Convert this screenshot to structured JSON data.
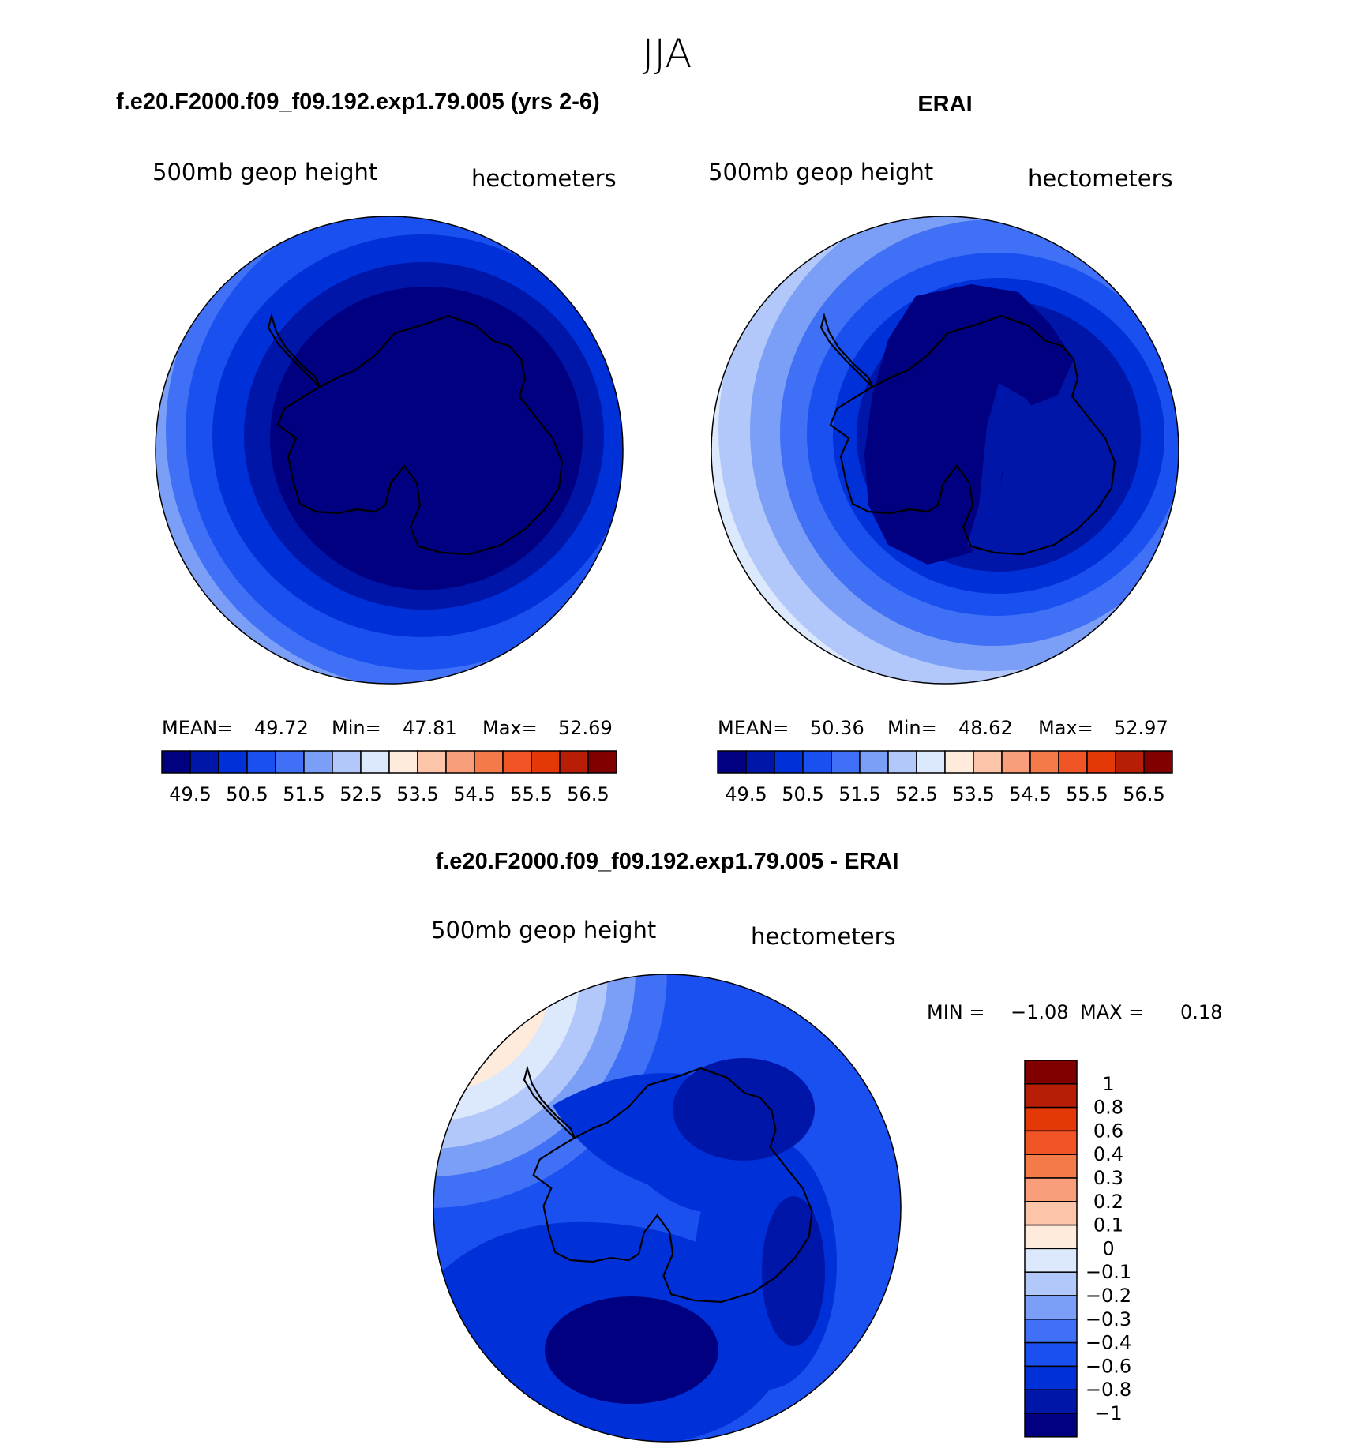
{
  "figure": {
    "season_title": "JJA",
    "panel_left": {
      "title": "f.e20.F2000.f09_f09.192.exp1.79.005 (yrs 2-6)",
      "field_label": "500mb  geop  height",
      "units_label": "hectometers",
      "stats": {
        "mean_label": "MEAN=",
        "mean": "49.72",
        "min_label": "Min=",
        "min": "47.81",
        "max_label": "Max=",
        "max": "52.69"
      }
    },
    "panel_right": {
      "title": "ERAI",
      "field_label": "500mb  geop  height",
      "units_label": "hectometers",
      "stats": {
        "mean_label": "MEAN=",
        "mean": "50.36",
        "min_label": "Min=",
        "min": "48.62",
        "max_label": "Max=",
        "max": "52.97"
      }
    },
    "panel_diff": {
      "title": "f.e20.F2000.f09_f09.192.exp1.79.005 - ERAI",
      "field_label": "500mb  geop  height",
      "units_label": "hectometers",
      "stats": {
        "min_label": "MIN =",
        "min": "−1.08",
        "max_label": "MAX =",
        "max": "0.18"
      }
    }
  },
  "colorbar_abs": {
    "labels": [
      "49.5",
      "50.5",
      "51.5",
      "52.5",
      "53.5",
      "54.5",
      "55.5",
      "56.5"
    ],
    "colors": [
      "#000080",
      "#0016a8",
      "#0030d8",
      "#1a50f0",
      "#3f70f5",
      "#7b9ff7",
      "#b2c8fa",
      "#dce8fc",
      "#feebdc",
      "#fcc5aa",
      "#f89e7b",
      "#f57a4a",
      "#f25525",
      "#e43808",
      "#b81e06",
      "#800000"
    ]
  },
  "colorbar_diff": {
    "labels": [
      "1",
      "0.8",
      "0.6",
      "0.4",
      "0.3",
      "0.2",
      "0.1",
      "0",
      "−0.1",
      "−0.2",
      "−0.3",
      "−0.4",
      "−0.6",
      "−0.8",
      "−1"
    ],
    "colors": [
      "#800000",
      "#b81e06",
      "#e43808",
      "#f25525",
      "#f57a4a",
      "#f89e7b",
      "#fcc5aa",
      "#feebdc",
      "#dce8fc",
      "#b2c8fa",
      "#7b9ff7",
      "#3f70f5",
      "#1a50f0",
      "#0030d8",
      "#0016a8",
      "#000080"
    ]
  },
  "map_colors": {
    "deep": "#000080",
    "d1": "#0016a8",
    "d2": "#0030d8",
    "d3": "#1a50f0",
    "d4": "#3f70f5",
    "d5": "#7b9ff7",
    "d6": "#b2c8fa",
    "d7": "#dce8fc",
    "w1": "#feebdc",
    "w2": "#fcc5aa"
  }
}
